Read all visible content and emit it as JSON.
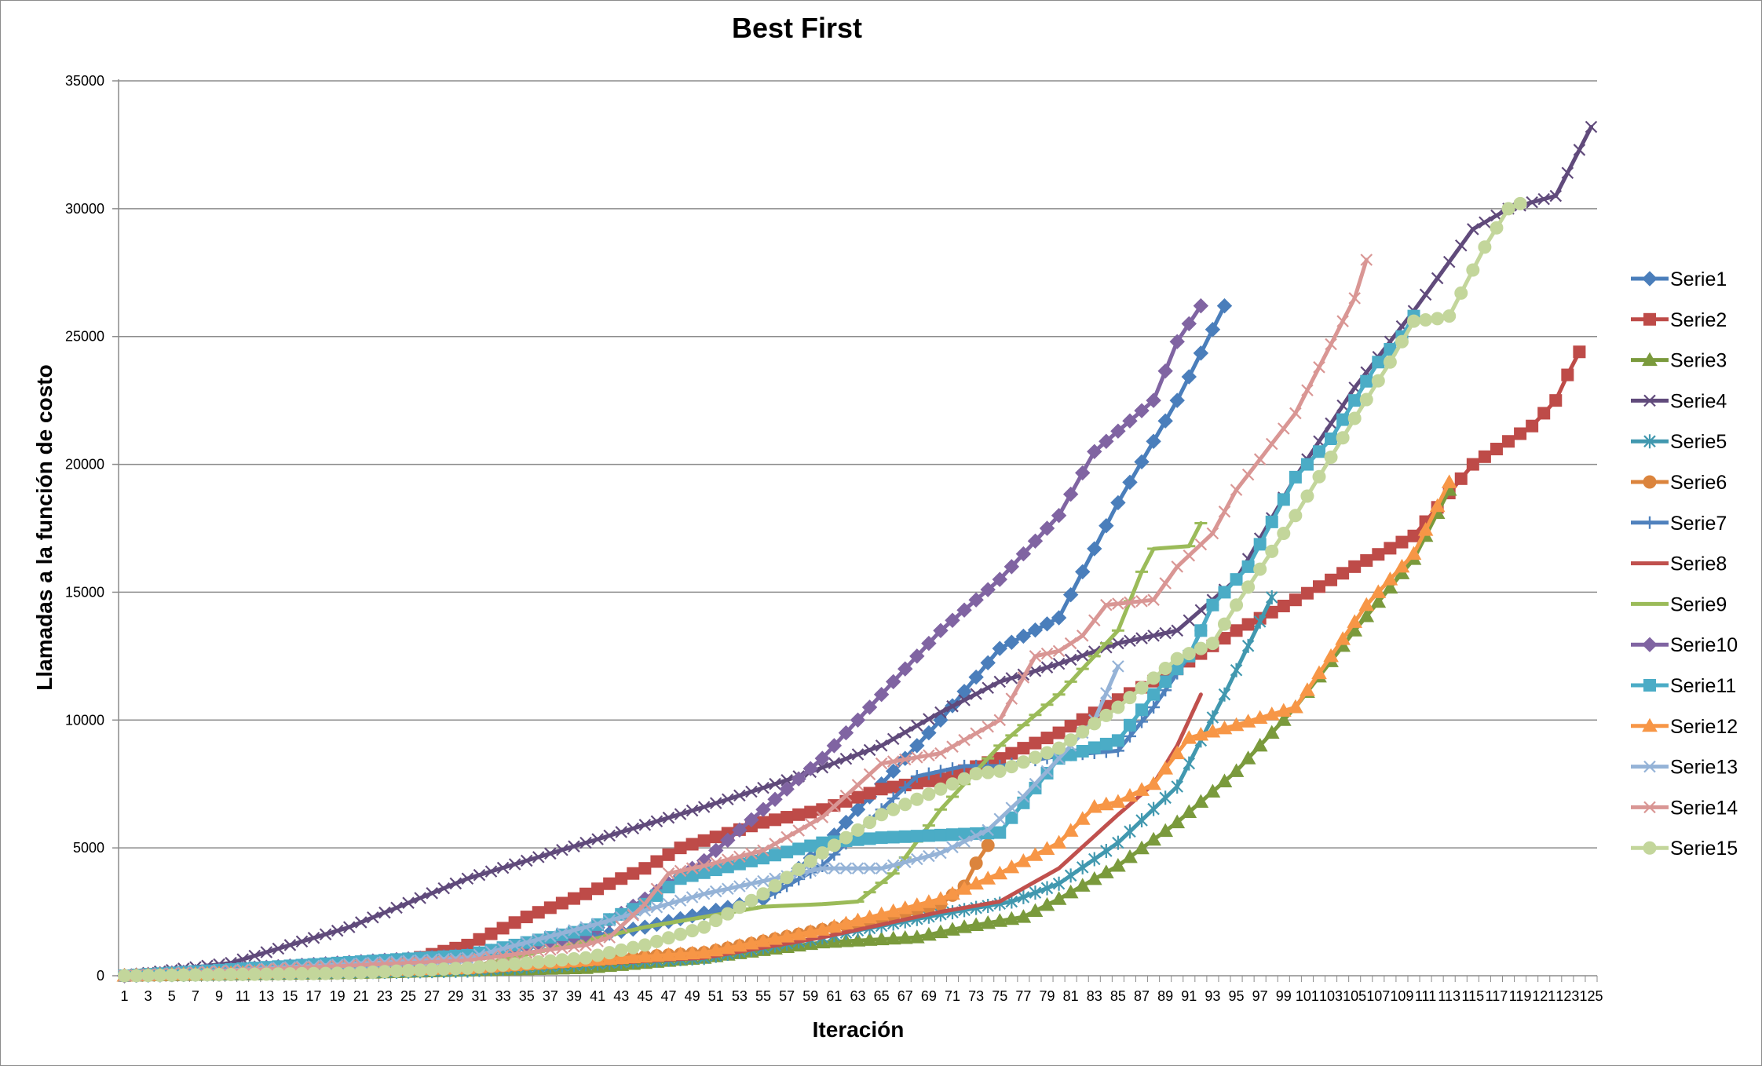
{
  "chart_data": {
    "type": "line",
    "title": "Best First",
    "xlabel": "Iteración",
    "ylabel": "Llamadas a la función de costo",
    "ylim": [
      0,
      35000
    ],
    "yticks": [
      0,
      5000,
      10000,
      15000,
      20000,
      25000,
      30000,
      35000
    ],
    "x_tick_labels": [
      "1",
      "3",
      "5",
      "7",
      "9",
      "11",
      "13",
      "15",
      "17",
      "19",
      "21",
      "23",
      "25",
      "27",
      "29",
      "31",
      "33",
      "35",
      "37",
      "39",
      "41",
      "43",
      "45",
      "47",
      "49",
      "51",
      "53",
      "55",
      "57",
      "59",
      "61",
      "63",
      "65",
      "67",
      "69",
      "71",
      "73",
      "75",
      "77",
      "79",
      "81",
      "83",
      "85",
      "87",
      "89",
      "91",
      "93",
      "95",
      "97",
      "99",
      "101",
      "103",
      "105",
      "107",
      "109",
      "111",
      "113",
      "115",
      "117",
      "119",
      "121",
      "123",
      "125"
    ],
    "xlim": [
      1,
      125
    ],
    "grid": "horizontal",
    "legend_position": "right",
    "series": [
      {
        "name": "Serie1",
        "color": "#4a7ebb",
        "marker": "diamond",
        "x": [
          1,
          30,
          45,
          55,
          60,
          65,
          70,
          75,
          80,
          85,
          90,
          94
        ],
        "y": [
          0,
          700,
          1900,
          3000,
          5000,
          7500,
          10000,
          12800,
          14000,
          18500,
          22500,
          26200
        ]
      },
      {
        "name": "Serie2",
        "color": "#be4b48",
        "marker": "square",
        "x": [
          1,
          25,
          30,
          35,
          40,
          45,
          48,
          55,
          60,
          65,
          70,
          75,
          80,
          85,
          90,
          95,
          100,
          105,
          110,
          115,
          120,
          122,
          123,
          124
        ],
        "y": [
          0,
          600,
          1200,
          2300,
          3200,
          4200,
          5000,
          6000,
          6500,
          7300,
          7700,
          8500,
          9500,
          10800,
          12000,
          13500,
          14700,
          16000,
          17200,
          20000,
          21500,
          22500,
          23500,
          24400
        ]
      },
      {
        "name": "Serie3",
        "color": "#7a9a3c",
        "marker": "triangle",
        "x": [
          1,
          20,
          40,
          50,
          60,
          68,
          72,
          77,
          80,
          85,
          90,
          95,
          100,
          105,
          110,
          113
        ],
        "y": [
          0,
          100,
          300,
          700,
          1300,
          1500,
          1900,
          2300,
          3000,
          4300,
          6000,
          8000,
          10500,
          13500,
          16300,
          19000
        ]
      },
      {
        "name": "Serie4",
        "color": "#604a7b",
        "marker": "x",
        "x": [
          1,
          10,
          20,
          30,
          40,
          50,
          58,
          65,
          70,
          75,
          80,
          85,
          90,
          95,
          100,
          105,
          110,
          115,
          118,
          122,
          125
        ],
        "y": [
          0,
          500,
          1900,
          3800,
          5200,
          6600,
          7800,
          9000,
          10300,
          11500,
          12200,
          13000,
          13500,
          15500,
          19500,
          23000,
          26000,
          29200,
          30000,
          30500,
          33200
        ]
      },
      {
        "name": "Serie5",
        "color": "#4198af",
        "marker": "asterisk",
        "x": [
          1,
          30,
          50,
          60,
          70,
          76,
          80,
          85,
          90,
          94,
          98
        ],
        "y": [
          0,
          200,
          700,
          1500,
          2400,
          2900,
          3600,
          5200,
          7400,
          11000,
          14800
        ]
      },
      {
        "name": "Serie6",
        "color": "#db843d",
        "marker": "circle",
        "x": [
          1,
          30,
          50,
          60,
          65,
          70,
          72,
          73,
          74
        ],
        "y": [
          0,
          300,
          900,
          1800,
          2200,
          2800,
          3500,
          4400,
          5100
        ]
      },
      {
        "name": "Serie7",
        "color": "#4f81bd",
        "marker": "plus",
        "x": [
          1,
          30,
          45,
          55,
          60,
          65,
          68,
          72,
          75,
          80,
          85,
          88,
          91,
          93
        ],
        "y": [
          0,
          700,
          1900,
          3000,
          4300,
          6500,
          7800,
          8200,
          8200,
          8600,
          8800,
          10500,
          12500,
          14500
        ]
      },
      {
        "name": "Serie8",
        "color": "#c0504d",
        "marker": "none",
        "x": [
          1,
          30,
          50,
          60,
          65,
          70,
          75,
          80,
          85,
          88,
          90,
          92
        ],
        "y": [
          0,
          200,
          700,
          1500,
          2000,
          2500,
          2900,
          4200,
          6300,
          7500,
          9000,
          11000
        ]
      },
      {
        "name": "Serie9",
        "color": "#9bbb59",
        "marker": "dash",
        "x": [
          1,
          30,
          45,
          55,
          60,
          63,
          66,
          70,
          75,
          80,
          85,
          87,
          88,
          91,
          92
        ],
        "y": [
          0,
          300,
          1900,
          2700,
          2800,
          2900,
          4000,
          6500,
          9000,
          11000,
          13500,
          15800,
          16700,
          16800,
          17700
        ]
      },
      {
        "name": "Serie10",
        "color": "#8064a2",
        "marker": "diamond",
        "x": [
          1,
          30,
          40,
          45,
          50,
          55,
          60,
          65,
          70,
          75,
          80,
          83,
          85,
          88,
          90,
          92
        ],
        "y": [
          0,
          800,
          1600,
          3000,
          4500,
          6500,
          8500,
          11000,
          13500,
          15500,
          18000,
          20500,
          21300,
          22500,
          24800,
          26200
        ]
      },
      {
        "name": "Serie11",
        "color": "#4bacc6",
        "marker": "square",
        "x": [
          1,
          30,
          40,
          45,
          48,
          55,
          60,
          65,
          70,
          75,
          80,
          85,
          88,
          91,
          93,
          96,
          100,
          103,
          105,
          107,
          109,
          110
        ],
        "y": [
          0,
          800,
          1800,
          2800,
          3800,
          4600,
          5200,
          5400,
          5500,
          5600,
          8500,
          9200,
          11000,
          12500,
          14500,
          16000,
          19500,
          21000,
          22500,
          24000,
          25000,
          25800
        ]
      },
      {
        "name": "Serie12",
        "color": "#f79646",
        "marker": "triangle",
        "x": [
          1,
          30,
          50,
          60,
          70,
          75,
          80,
          83,
          85,
          88,
          91,
          95,
          100,
          103,
          106,
          110,
          113
        ],
        "y": [
          0,
          300,
          900,
          1800,
          3000,
          4000,
          5200,
          6600,
          6800,
          7500,
          9300,
          9800,
          10500,
          12500,
          14500,
          16500,
          19300
        ]
      },
      {
        "name": "Serie13",
        "color": "#95b3d7",
        "marker": "x",
        "x": [
          1,
          30,
          40,
          50,
          60,
          65,
          70,
          74,
          77,
          80,
          83,
          85
        ],
        "y": [
          0,
          700,
          1900,
          3200,
          4200,
          4200,
          4800,
          5700,
          7000,
          8500,
          10000,
          12100
        ]
      },
      {
        "name": "Serie14",
        "color": "#d99694",
        "marker": "x",
        "x": [
          1,
          30,
          40,
          42,
          45,
          47,
          50,
          55,
          60,
          65,
          70,
          75,
          78,
          80,
          82,
          84,
          86,
          88,
          90,
          93,
          95,
          100,
          105,
          106
        ],
        "y": [
          0,
          600,
          1200,
          1500,
          2800,
          4000,
          4300,
          4900,
          6200,
          8300,
          8700,
          10000,
          12500,
          12700,
          13300,
          14500,
          14600,
          14700,
          16000,
          17300,
          19000,
          22000,
          26500,
          28000
        ]
      },
      {
        "name": "Serie15",
        "color": "#c3d69b",
        "marker": "circle",
        "x": [
          1,
          20,
          30,
          40,
          45,
          50,
          55,
          60,
          65,
          70,
          73,
          75,
          80,
          85,
          90,
          93,
          95,
          100,
          105,
          108,
          110,
          112,
          113,
          114,
          116,
          118,
          119
        ],
        "y": [
          0,
          100,
          300,
          700,
          1200,
          1900,
          3200,
          4800,
          6300,
          7300,
          7900,
          8000,
          8900,
          10500,
          12400,
          13000,
          14500,
          18000,
          21800,
          24000,
          25600,
          25700,
          25800,
          26700,
          28500,
          30000,
          30200
        ]
      }
    ]
  }
}
